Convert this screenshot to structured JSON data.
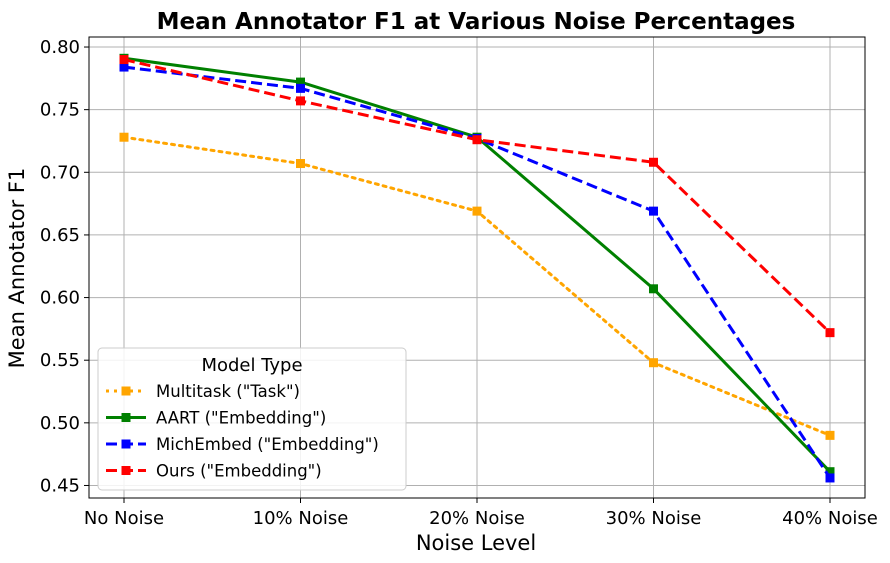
{
  "chart_data": {
    "type": "line",
    "title": "Mean Annotator F1 at Various Noise Percentages",
    "xlabel": "Noise Level",
    "ylabel": "Mean Annotator F1",
    "categories": [
      "No Noise",
      "10% Noise",
      "20% Noise",
      "30% Noise",
      "40% Noise"
    ],
    "ylim": [
      0.44,
      0.808
    ],
    "yticks": [
      0.45,
      0.5,
      0.55,
      0.6,
      0.65,
      0.7,
      0.75,
      0.8
    ],
    "ytick_labels": [
      "0.45",
      "0.50",
      "0.55",
      "0.60",
      "0.65",
      "0.70",
      "0.75",
      "0.80"
    ],
    "grid": true,
    "legend": {
      "title": "Model Type",
      "placement": "lower-left"
    },
    "series": [
      {
        "name": "Multitask (\"Task\")",
        "values": [
          0.728,
          0.707,
          0.669,
          0.548,
          0.49
        ],
        "color": "#ffa500",
        "line_style": "dotted",
        "marker": "square"
      },
      {
        "name": "AART (\"Embedding\")",
        "values": [
          0.791,
          0.772,
          0.728,
          0.607,
          0.461
        ],
        "color": "#008000",
        "line_style": "solid",
        "marker": "square"
      },
      {
        "name": "MichEmbed (\"Embedding\")",
        "values": [
          0.784,
          0.767,
          0.727,
          0.669,
          0.456
        ],
        "color": "#0000ff",
        "line_style": "dashed",
        "marker": "square"
      },
      {
        "name": "Ours (\"Embedding\")",
        "values": [
          0.79,
          0.757,
          0.726,
          0.708,
          0.572
        ],
        "color": "#ff0000",
        "line_style": "dashed",
        "marker": "square"
      }
    ]
  }
}
